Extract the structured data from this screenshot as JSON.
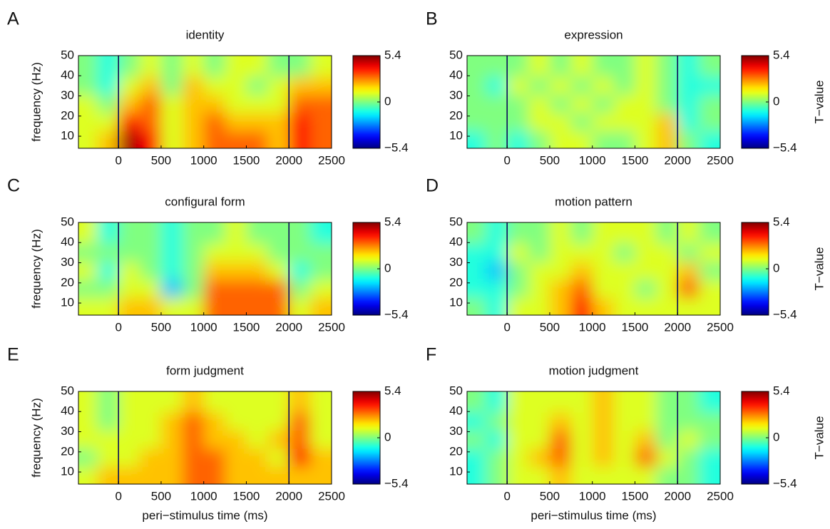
{
  "chart_data": [
    {
      "type": "heatmap",
      "panel": "A",
      "title": "identity",
      "ylabel": "frequency (Hz)",
      "colormap": "jet",
      "x": [
        -375,
        -125,
        125,
        375,
        625,
        875,
        1125,
        1375,
        1625,
        1875,
        2125,
        2375
      ],
      "y": [
        44,
        35,
        26,
        17,
        8
      ],
      "z": [
        [
          0,
          -1,
          0,
          1,
          0,
          1,
          0,
          1,
          1,
          0,
          0,
          1
        ],
        [
          0,
          -1,
          1,
          2,
          0,
          2,
          1,
          1,
          0,
          1,
          2,
          2
        ],
        [
          1,
          0,
          2,
          3,
          1,
          2,
          2,
          1,
          1,
          1,
          3,
          3
        ],
        [
          1,
          1,
          4,
          3,
          1,
          2,
          3,
          2,
          2,
          2,
          4,
          3
        ],
        [
          1,
          2,
          5,
          4,
          1,
          2,
          3,
          3,
          3,
          2,
          4,
          3
        ]
      ],
      "xlim": [
        -470,
        2500
      ],
      "ylim": [
        4,
        50
      ],
      "xticks": [
        0,
        500,
        1000,
        1500,
        2000,
        2500
      ],
      "yticks": [
        10,
        20,
        30,
        40,
        50
      ],
      "vlines": [
        0,
        2000
      ],
      "clim": [
        -5.4,
        5.4
      ],
      "cticks": [
        {
          "value": -5.4,
          "label": "−5.4"
        },
        0,
        5.4
      ]
    },
    {
      "type": "heatmap",
      "panel": "B",
      "title": "expression",
      "colorbar_label": "T−value",
      "colormap": "jet",
      "x": [
        -375,
        -125,
        125,
        375,
        625,
        875,
        1125,
        1375,
        1625,
        1875,
        2125,
        2375
      ],
      "y": [
        44,
        35,
        26,
        17,
        8
      ],
      "z": [
        [
          0,
          0,
          0,
          1,
          0,
          1,
          0,
          0,
          1,
          0,
          -1,
          0
        ],
        [
          0,
          -1,
          1,
          0,
          1,
          0,
          1,
          0,
          1,
          0,
          -1,
          -1
        ],
        [
          0,
          0,
          0,
          1,
          0,
          1,
          0,
          1,
          1,
          0,
          -1,
          0
        ],
        [
          0,
          0,
          0,
          1,
          1,
          0,
          1,
          1,
          1,
          2,
          -1,
          0
        ],
        [
          -1,
          0,
          -1,
          0,
          1,
          1,
          0,
          0,
          1,
          2,
          0,
          -1
        ]
      ],
      "xlim": [
        -470,
        2500
      ],
      "ylim": [
        4,
        50
      ],
      "xticks": [
        0,
        500,
        1000,
        1500,
        2000,
        2500
      ],
      "yticks": [
        10,
        20,
        30,
        40,
        50
      ],
      "vlines": [
        0,
        2000
      ],
      "clim": [
        -5.4,
        5.4
      ],
      "cticks": [
        {
          "value": -5.4,
          "label": "−5.4"
        },
        0,
        5.4
      ]
    },
    {
      "type": "heatmap",
      "panel": "C",
      "title": "configural form",
      "ylabel": "frequency (Hz)",
      "colormap": "jet",
      "x": [
        -375,
        -125,
        125,
        375,
        625,
        875,
        1125,
        1375,
        1625,
        1875,
        2125,
        2375
      ],
      "y": [
        44,
        35,
        26,
        17,
        8
      ],
      "z": [
        [
          1,
          -1,
          0,
          0,
          -1,
          0,
          0,
          1,
          0,
          0,
          0,
          -1
        ],
        [
          0,
          0,
          0,
          0,
          -1,
          0,
          1,
          1,
          1,
          0,
          0,
          0
        ],
        [
          1,
          -1,
          1,
          0,
          -1,
          0,
          2,
          2,
          2,
          1,
          -1,
          0
        ],
        [
          0,
          0,
          1,
          1,
          -2,
          0,
          3,
          3,
          3,
          3,
          0,
          1
        ],
        [
          1,
          1,
          2,
          2,
          1,
          1,
          3,
          3,
          3,
          3,
          1,
          2
        ]
      ],
      "xlim": [
        -470,
        2500
      ],
      "ylim": [
        4,
        50
      ],
      "xticks": [
        0,
        500,
        1000,
        1500,
        2000,
        2500
      ],
      "yticks": [
        10,
        20,
        30,
        40,
        50
      ],
      "vlines": [
        0,
        2000
      ],
      "clim": [
        -5.4,
        5.4
      ],
      "cticks": [
        {
          "value": -5.4,
          "label": "−5.4"
        },
        0,
        5.4
      ]
    },
    {
      "type": "heatmap",
      "panel": "D",
      "title": "motion pattern",
      "colorbar_label": "T−value",
      "colormap": "jet",
      "x": [
        -375,
        -125,
        125,
        375,
        625,
        875,
        1125,
        1375,
        1625,
        1875,
        2125,
        2375
      ],
      "y": [
        44,
        35,
        26,
        17,
        8
      ],
      "z": [
        [
          0,
          -1,
          0,
          0,
          1,
          0,
          1,
          1,
          1,
          0,
          1,
          0
        ],
        [
          -1,
          -1,
          1,
          0,
          1,
          1,
          1,
          0,
          1,
          1,
          0,
          1
        ],
        [
          -1,
          -2,
          0,
          1,
          1,
          2,
          1,
          1,
          1,
          1,
          2,
          0
        ],
        [
          -1,
          -1,
          0,
          1,
          2,
          3,
          1,
          1,
          0,
          1,
          3,
          1
        ],
        [
          0,
          -1,
          1,
          1,
          2,
          4,
          2,
          1,
          1,
          1,
          1,
          1
        ]
      ],
      "xlim": [
        -470,
        2500
      ],
      "ylim": [
        4,
        50
      ],
      "xticks": [
        0,
        500,
        1000,
        1500,
        2000,
        2500
      ],
      "yticks": [
        10,
        20,
        30,
        40,
        50
      ],
      "vlines": [
        0,
        2000
      ],
      "clim": [
        -5.4,
        5.4
      ],
      "cticks": [
        {
          "value": -5.4,
          "label": "−5.4"
        },
        0,
        5.4
      ]
    },
    {
      "type": "heatmap",
      "panel": "E",
      "title": "form judgment",
      "ylabel": "frequency (Hz)",
      "xlabel": "peri−stimulus time (ms)",
      "colormap": "jet",
      "x": [
        -375,
        -125,
        125,
        375,
        625,
        875,
        1125,
        1375,
        1625,
        1875,
        2125,
        2375
      ],
      "y": [
        44,
        35,
        26,
        17,
        8
      ],
      "z": [
        [
          1,
          0,
          1,
          1,
          1,
          2,
          1,
          1,
          1,
          1,
          2,
          1
        ],
        [
          1,
          0,
          1,
          1,
          2,
          3,
          2,
          1,
          1,
          1,
          3,
          1
        ],
        [
          1,
          1,
          1,
          1,
          2,
          3,
          2,
          2,
          1,
          2,
          3,
          1
        ],
        [
          0,
          1,
          1,
          2,
          2,
          3,
          3,
          2,
          2,
          1,
          4,
          2
        ],
        [
          1,
          2,
          2,
          2,
          2,
          3,
          3,
          2,
          2,
          2,
          2,
          2
        ]
      ],
      "xlim": [
        -470,
        2500
      ],
      "ylim": [
        4,
        50
      ],
      "xticks": [
        0,
        500,
        1000,
        1500,
        2000,
        2500
      ],
      "yticks": [
        10,
        20,
        30,
        40,
        50
      ],
      "vlines": [
        0,
        2000
      ],
      "clim": [
        -5.4,
        5.4
      ],
      "cticks": [
        {
          "value": -5.4,
          "label": "−5.4"
        },
        0,
        5.4
      ]
    },
    {
      "type": "heatmap",
      "panel": "F",
      "title": "motion judgment",
      "xlabel": "peri−stimulus time (ms)",
      "colorbar_label": "T−value",
      "colormap": "jet",
      "x": [
        -375,
        -125,
        125,
        375,
        625,
        875,
        1125,
        1375,
        1625,
        1875,
        2125,
        2375
      ],
      "y": [
        44,
        35,
        26,
        17,
        8
      ],
      "z": [
        [
          0,
          -1,
          1,
          1,
          1,
          1,
          2,
          1,
          1,
          0,
          0,
          -1
        ],
        [
          -1,
          0,
          1,
          1,
          2,
          1,
          2,
          1,
          1,
          0,
          0,
          0
        ],
        [
          0,
          -1,
          1,
          1,
          3,
          1,
          2,
          1,
          2,
          0,
          1,
          0
        ],
        [
          -1,
          0,
          1,
          2,
          3,
          1,
          2,
          1,
          3,
          1,
          0,
          -1
        ],
        [
          -1,
          0,
          1,
          1,
          2,
          1,
          1,
          1,
          1,
          0,
          0,
          -1
        ]
      ],
      "xlim": [
        -470,
        2500
      ],
      "ylim": [
        4,
        50
      ],
      "xticks": [
        0,
        500,
        1000,
        1500,
        2000,
        2500
      ],
      "yticks": [
        10,
        20,
        30,
        40,
        50
      ],
      "vlines": [
        0,
        2000
      ],
      "clim": [
        -5.4,
        5.4
      ],
      "cticks": [
        {
          "value": -5.4,
          "label": "−5.4"
        },
        0,
        5.4
      ]
    }
  ]
}
